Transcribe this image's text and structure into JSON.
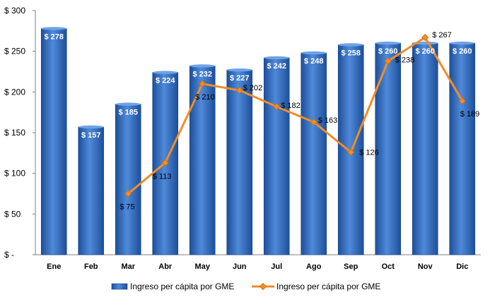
{
  "chart_data": {
    "type": "bar",
    "categories": [
      "Ene",
      "Feb",
      "Mar",
      "Abr",
      "May",
      "Jun",
      "Jul",
      "Ago",
      "Sep",
      "Oct",
      "Nov",
      "Dic"
    ],
    "series": [
      {
        "name": "Ingreso per cápita por GME",
        "type": "bar",
        "values": [
          278,
          157,
          185,
          224,
          232,
          227,
          242,
          248,
          258,
          260,
          260,
          260
        ],
        "labels": [
          "$ 278",
          "$ 157",
          "$ 185",
          "$ 224",
          "$ 232",
          "$ 227",
          "$ 242",
          "$ 248",
          "$ 258",
          "$ 260",
          "$ 260",
          "$ 260"
        ],
        "color": "#2f6cc0"
      },
      {
        "name": "Ingreso per cápita por GME",
        "type": "line",
        "values": [
          null,
          null,
          75,
          113,
          210,
          202,
          182,
          163,
          126,
          238,
          267,
          189
        ],
        "labels": [
          "",
          "",
          "$ 75",
          "$ 113",
          "$ 210",
          "$ 202",
          "$ 182",
          "$ 163",
          "$ 126",
          "$ 238",
          "$ 267",
          "$ 189"
        ],
        "color": "#f28c28"
      }
    ],
    "ylim": [
      0,
      300
    ],
    "yticks": [
      0,
      50,
      100,
      150,
      200,
      250,
      300
    ],
    "ytick_labels": [
      "$ -",
      "$ 50",
      "$ 100",
      "$ 150",
      "$ 200",
      "$ 250",
      "$ 300"
    ],
    "grid": false,
    "legend": "bottom"
  }
}
